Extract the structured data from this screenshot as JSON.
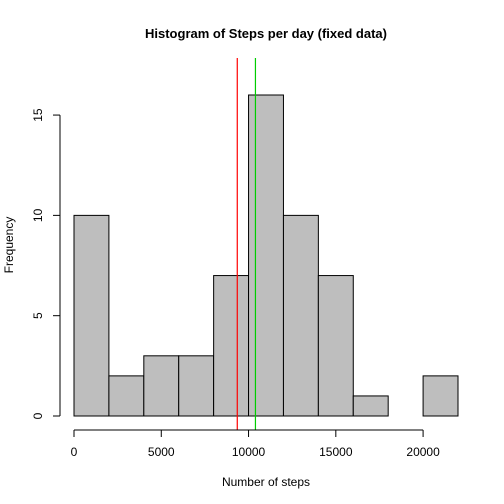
{
  "chart_data": {
    "type": "bar",
    "title": "Histogram of Steps per day (fixed data)",
    "xlabel": "Number of steps",
    "ylabel": "Frequency",
    "bin_edges": [
      0,
      2000,
      4000,
      6000,
      8000,
      10000,
      12000,
      14000,
      16000,
      18000,
      20000,
      22000
    ],
    "values": [
      10,
      2,
      3,
      3,
      7,
      16,
      10,
      7,
      1,
      0,
      2
    ],
    "xlim": [
      0,
      22000
    ],
    "ylim": [
      0,
      16
    ],
    "x_ticks": [
      0,
      5000,
      10000,
      15000,
      20000
    ],
    "y_ticks": [
      0,
      5,
      10,
      15
    ],
    "x_tick_labels": [
      "0",
      "5000",
      "10000",
      "15000",
      "20000"
    ],
    "y_tick_labels": [
      "0",
      "5",
      "10",
      "15"
    ],
    "bar_color": "#bebebe",
    "vlines": [
      {
        "x": 9354,
        "color": "#ff0000"
      },
      {
        "x": 10395,
        "color": "#00cd00"
      }
    ],
    "grid": false,
    "legend": "none"
  }
}
